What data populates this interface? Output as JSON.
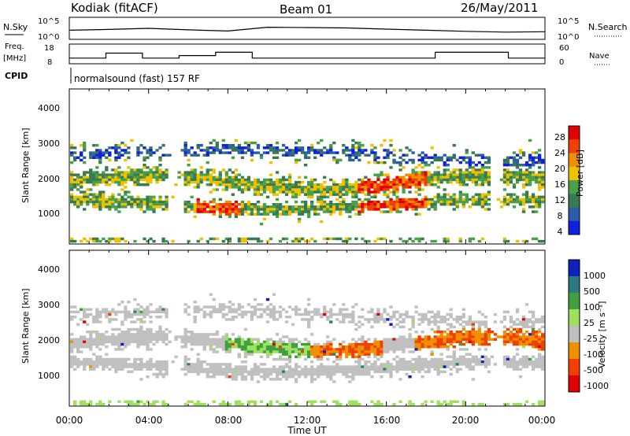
{
  "header": {
    "station": "Kodiak (fitACF)",
    "beam": "Beam 01",
    "date": "26/May/2011"
  },
  "noise_panel": {
    "left_label": "N.Sky",
    "right_label": "N.Search",
    "left_ticks": [
      "10^5",
      "10^0"
    ],
    "right_ticks": [
      "10^5",
      "10^0"
    ]
  },
  "freq_panel": {
    "left_label_1": "Freq.",
    "left_label_2": "[MHz]",
    "right_label": "Nave",
    "left_ticks": [
      "18",
      "8"
    ],
    "right_ticks": [
      "60",
      "0"
    ]
  },
  "cpid": {
    "label": "CPID",
    "text": "normalsound (fast) 157 RF"
  },
  "colors": {
    "power_scale": [
      "#1020e0",
      "#2a5fa8",
      "#3a7a50",
      "#4aa04a",
      "#f0c000",
      "#f09000",
      "#f04000",
      "#e00000"
    ],
    "velocity_scale": [
      "#e00000",
      "#f04000",
      "#f09000",
      "#c0c0c0",
      "#a0e060",
      "#40a040",
      "#2a7a80",
      "#1020c0"
    ]
  },
  "chart_data": [
    {
      "type": "line",
      "title": "N.Sky / N.Search",
      "x": [
        "00:00",
        "02:00",
        "04:00",
        "06:00",
        "08:00",
        "10:00",
        "12:00",
        "14:00",
        "16:00",
        "18:00",
        "20:00",
        "22:00",
        "00:00"
      ],
      "series": [
        {
          "name": "N.Sky",
          "values": [
            2.0,
            2.2,
            2.5,
            2.1,
            1.8,
            2.8,
            2.7,
            2.6,
            2.3,
            2.0,
            1.7,
            1.5,
            1.6
          ]
        }
      ],
      "ylim": [
        0,
        5
      ]
    },
    {
      "type": "line",
      "title": "Freq. / Nave",
      "series": [
        {
          "name": "Freq.",
          "values": [
            10.5,
            13.5,
            10.5,
            12,
            14,
            10.5,
            10.5,
            10.5,
            10.5,
            10.5,
            14,
            14,
            10.5
          ]
        }
      ],
      "ylim": [
        8,
        18
      ]
    },
    {
      "type": "heatmap",
      "xlabel": "",
      "ylabel": "Slant Range [km]",
      "xlim": [
        0,
        24
      ],
      "ylim": [
        180,
        4500
      ],
      "y_ticks": [
        "1000",
        "2000",
        "3000",
        "4000"
      ],
      "colorbar": {
        "label": "Power [dB]",
        "ticks": [
          "28",
          "24",
          "20",
          "16",
          "12",
          "8",
          "4"
        ]
      }
    },
    {
      "type": "heatmap",
      "xlabel": "Time UT",
      "ylabel": "Slant Range [km]",
      "xlim": [
        0,
        24
      ],
      "ylim": [
        180,
        4500
      ],
      "x_ticks": [
        "00:00",
        "04:00",
        "08:00",
        "12:00",
        "16:00",
        "20:00",
        "00:00"
      ],
      "y_ticks": [
        "1000",
        "2000",
        "3000",
        "4000"
      ],
      "colorbar": {
        "label": "Velocity [m s⁻¹]",
        "ticks": [
          "1000",
          "500",
          "100",
          "25",
          "-25",
          "-100",
          "-500",
          "-1000"
        ]
      }
    }
  ]
}
